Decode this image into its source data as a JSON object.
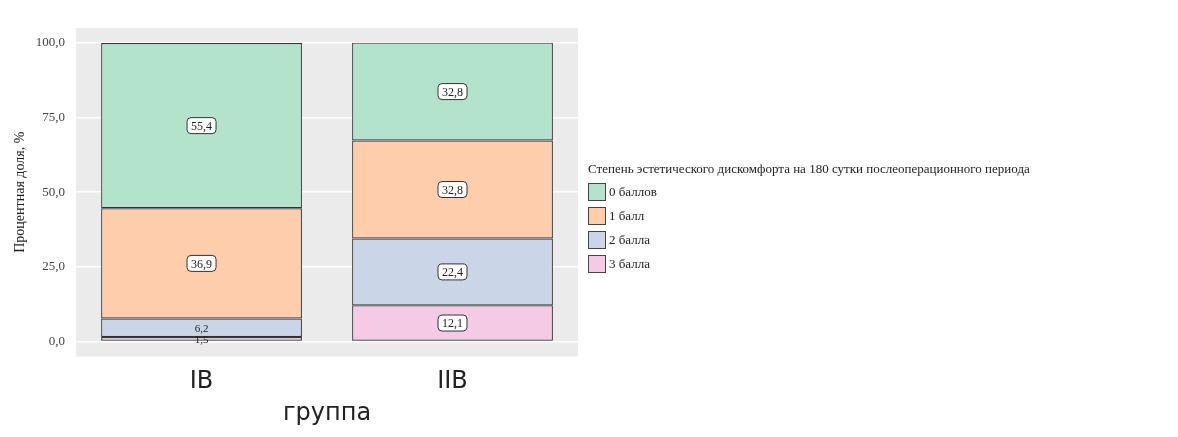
{
  "chart_data": {
    "type": "bar",
    "stacked": true,
    "ylabel": "Процентная доля, %",
    "xlabel": "группа",
    "legend_title": "Степень эстетического дискомфорта на 180 сутки послеоперационного периода",
    "legend": "right",
    "categories": [
      "IB",
      "IIB"
    ],
    "series": [
      {
        "name": "3 балла",
        "color": "#f4cae4",
        "values": [
          1.5,
          12.1
        ],
        "value_labels": [
          "1,5",
          "12,1"
        ]
      },
      {
        "name": "2 балла",
        "color": "#cbd5e8",
        "values": [
          6.2,
          22.4
        ],
        "value_labels": [
          "6,2",
          "22,4"
        ]
      },
      {
        "name": "1 балл",
        "color": "#fdcdac",
        "values": [
          36.9,
          32.8
        ],
        "value_labels": [
          "36,9",
          "32,8"
        ]
      },
      {
        "name": "0 баллов",
        "color": "#b3e2cd",
        "values": [
          55.4,
          32.8
        ],
        "value_labels": [
          "55,4",
          "32,8"
        ]
      }
    ],
    "ylim": [
      -5,
      105
    ],
    "yticks": [
      {
        "value": 0,
        "label": "0,0"
      },
      {
        "value": 25,
        "label": "25,0"
      },
      {
        "value": 50,
        "label": "50,0"
      },
      {
        "value": 75,
        "label": "75,0"
      },
      {
        "value": 100,
        "label": "100,0"
      }
    ],
    "grid": "y"
  }
}
